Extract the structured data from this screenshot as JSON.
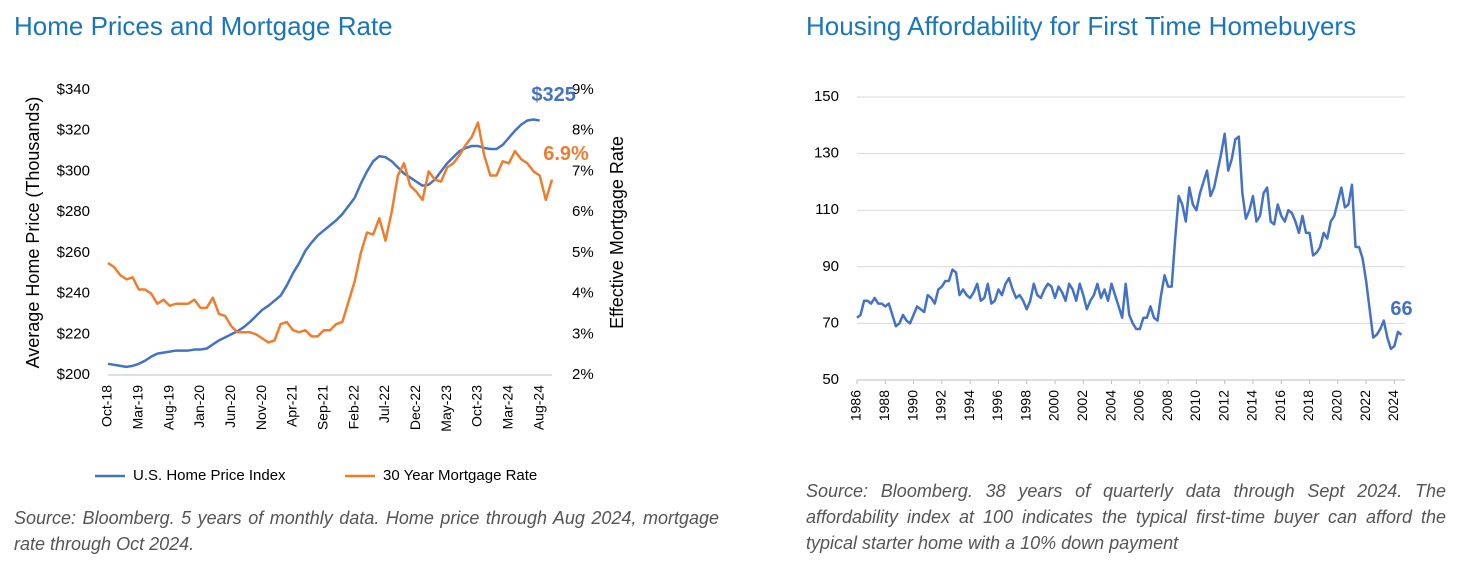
{
  "chart_data": [
    {
      "type": "line",
      "title": "Home Prices and Mortgage Rate",
      "y_label": "Average Home Price (Thousands)",
      "y2_label": "Effective Mortgage Rate",
      "categories": [
        "Oct-18",
        null,
        null,
        null,
        null,
        "Mar-19",
        null,
        null,
        null,
        null,
        "Aug-19",
        null,
        null,
        null,
        null,
        "Jan-20",
        null,
        null,
        null,
        null,
        "Jun-20",
        null,
        null,
        null,
        null,
        "Nov-20",
        null,
        null,
        null,
        null,
        "Apr-21",
        null,
        null,
        null,
        null,
        "Sep-21",
        null,
        null,
        null,
        null,
        "Feb-22",
        null,
        null,
        null,
        null,
        "Jul-22",
        null,
        null,
        null,
        null,
        "Dec-22",
        null,
        null,
        null,
        null,
        "May-23",
        null,
        null,
        null,
        null,
        "Oct-23",
        null,
        null,
        null,
        null,
        "Mar-24",
        null,
        null,
        null,
        null,
        "Aug-24",
        null,
        null
      ],
      "series": [
        {
          "name": "U.S. Home Price Index",
          "color": "#4472c4",
          "values": [
            205.5,
            205,
            204.5,
            204,
            204.5,
            205.5,
            207,
            209,
            210.5,
            211,
            211.5,
            212,
            212,
            212,
            212.5,
            212.5,
            213,
            215,
            217,
            218.5,
            220,
            221.5,
            223.5,
            226,
            229,
            232,
            234,
            236.5,
            239,
            244,
            250,
            255,
            261,
            265,
            268.5,
            271,
            273.5,
            276,
            279,
            283,
            287,
            294,
            300,
            305,
            307.5,
            307,
            305,
            302,
            299,
            297,
            295,
            293,
            293.5,
            296,
            300,
            304,
            307,
            310,
            311.5,
            312.5,
            312.5,
            311.5,
            311,
            311,
            313,
            316.5,
            320,
            323,
            325,
            325.5,
            325,
            null,
            null
          ]
        },
        {
          "name": "30 Year Mortgage Rate",
          "color": "#ed7d31",
          "axis": "y2",
          "values": [
            4.75,
            4.65,
            4.45,
            4.35,
            4.4,
            4.1,
            4.1,
            4.0,
            3.75,
            3.85,
            3.7,
            3.75,
            3.75,
            3.75,
            3.85,
            3.65,
            3.65,
            3.9,
            3.5,
            3.45,
            3.2,
            3.05,
            3.05,
            3.05,
            3.0,
            2.9,
            2.8,
            2.85,
            3.25,
            3.3,
            3.1,
            3.05,
            3.1,
            2.95,
            2.95,
            3.1,
            3.1,
            3.25,
            3.3,
            3.8,
            4.3,
            5.0,
            5.5,
            5.45,
            5.85,
            5.3,
            6.0,
            6.9,
            7.2,
            6.65,
            6.5,
            6.3,
            7.0,
            6.8,
            6.75,
            7.1,
            7.2,
            7.4,
            7.65,
            7.85,
            8.2,
            7.4,
            6.9,
            6.9,
            7.25,
            7.2,
            7.5,
            7.3,
            7.2,
            7.0,
            6.9,
            6.3,
            6.8
          ]
        }
      ],
      "ylim": [
        200,
        340
      ],
      "yticks": [
        {
          "value": 200,
          "label": "$200"
        },
        {
          "value": 220,
          "label": "$220"
        },
        {
          "value": 240,
          "label": "$240"
        },
        {
          "value": 260,
          "label": "$260"
        },
        {
          "value": 280,
          "label": "$280"
        },
        {
          "value": 300,
          "label": "$300"
        },
        {
          "value": 320,
          "label": "$320"
        },
        {
          "value": 340,
          "label": "$340"
        }
      ],
      "y2lim": [
        2,
        9
      ],
      "y2ticks": [
        {
          "value": 2,
          "label": "2%"
        },
        {
          "value": 3,
          "label": "3%"
        },
        {
          "value": 4,
          "label": "4%"
        },
        {
          "value": 5,
          "label": "5%"
        },
        {
          "value": 6,
          "label": "6%"
        },
        {
          "value": 7,
          "label": "7%"
        },
        {
          "value": 8,
          "label": "8%"
        },
        {
          "value": 9,
          "label": "9%"
        }
      ],
      "annotations": [
        "$325",
        "6.9%"
      ],
      "grid": false,
      "legend": "bottom",
      "source": "Source: Bloomberg. 5 years of monthly data. Home price through Aug 2024, mortgage rate through Oct 2024."
    },
    {
      "type": "line",
      "title": "Housing Affordability for First Time Homebuyers",
      "x": [
        1986,
        1986.25,
        1986.5,
        1986.75,
        1987,
        1987.25,
        1987.5,
        1987.75,
        1988,
        1988.25,
        1988.5,
        1988.75,
        1989,
        1989.25,
        1989.5,
        1989.75,
        1990,
        1990.25,
        1990.5,
        1990.75,
        1991,
        1991.25,
        1991.5,
        1991.75,
        1992,
        1992.25,
        1992.5,
        1992.75,
        1993,
        1993.25,
        1993.5,
        1993.75,
        1994,
        1994.25,
        1994.5,
        1994.75,
        1995,
        1995.25,
        1995.5,
        1995.75,
        1996,
        1996.25,
        1996.5,
        1996.75,
        1997,
        1997.25,
        1997.5,
        1997.75,
        1998,
        1998.25,
        1998.5,
        1998.75,
        1999,
        1999.25,
        1999.5,
        1999.75,
        2000,
        2000.25,
        2000.5,
        2000.75,
        2001,
        2001.25,
        2001.5,
        2001.75,
        2002,
        2002.25,
        2002.5,
        2002.75,
        2003,
        2003.25,
        2003.5,
        2003.75,
        2004,
        2004.25,
        2004.5,
        2004.75,
        2005,
        2005.25,
        2005.5,
        2005.75,
        2006,
        2006.25,
        2006.5,
        2006.75,
        2007,
        2007.25,
        2007.5,
        2007.75,
        2008,
        2008.25,
        2008.5,
        2008.75,
        2009,
        2009.25,
        2009.5,
        2009.75,
        2010,
        2010.25,
        2010.5,
        2010.75,
        2011,
        2011.25,
        2011.5,
        2011.75,
        2012,
        2012.25,
        2012.5,
        2012.75,
        2013,
        2013.25,
        2013.5,
        2013.75,
        2014,
        2014.25,
        2014.5,
        2014.75,
        2015,
        2015.25,
        2015.5,
        2015.75,
        2016,
        2016.25,
        2016.5,
        2016.75,
        2017,
        2017.25,
        2017.5,
        2017.75,
        2018,
        2018.25,
        2018.5,
        2018.75,
        2019,
        2019.25,
        2019.5,
        2019.75,
        2020,
        2020.25,
        2020.5,
        2020.75,
        2021,
        2021.25,
        2021.5,
        2021.75,
        2022,
        2022.25,
        2022.5,
        2022.75,
        2023,
        2023.25,
        2023.5,
        2023.75,
        2024,
        2024.25,
        2024.5
      ],
      "values": [
        72,
        73,
        78,
        78,
        77,
        79,
        77,
        77,
        76,
        77,
        73,
        69,
        70,
        73,
        71,
        70,
        73,
        76,
        75,
        74,
        80,
        79,
        77,
        82,
        83,
        85,
        85,
        89,
        88,
        80,
        82,
        80,
        79,
        81,
        84,
        78,
        79,
        84,
        77,
        78,
        82,
        80,
        84,
        86,
        82,
        79,
        80,
        78,
        75,
        78,
        84,
        80,
        79,
        82,
        84,
        83,
        79,
        83,
        81,
        78,
        84,
        82,
        78,
        84,
        80,
        75,
        78,
        80,
        84,
        79,
        82,
        78,
        84,
        80,
        76,
        72,
        84,
        73,
        70,
        68,
        68,
        72,
        72,
        76,
        72,
        71,
        80,
        87,
        83,
        83,
        100,
        115,
        112,
        106,
        118,
        112,
        110,
        116,
        120,
        124,
        115,
        118,
        124,
        130,
        137,
        124,
        128,
        135,
        136,
        116,
        107,
        110,
        115,
        106,
        108,
        116,
        118,
        106,
        105,
        112,
        108,
        106,
        110,
        109,
        106,
        102,
        108,
        102,
        102,
        94,
        95,
        97,
        102,
        100,
        106,
        108,
        113,
        118,
        111,
        112,
        119,
        97,
        97,
        93,
        85,
        75,
        65,
        66,
        68,
        71,
        65,
        61,
        62,
        67,
        66
      ],
      "color": "#4472c4",
      "xlim": [
        1986,
        2024.75
      ],
      "xticks": [
        1986,
        1988,
        1990,
        1992,
        1994,
        1996,
        1998,
        2000,
        2002,
        2004,
        2006,
        2008,
        2010,
        2012,
        2014,
        2016,
        2018,
        2020,
        2022,
        2024
      ],
      "ylim": [
        50,
        150
      ],
      "yticks": [
        50,
        70,
        90,
        110,
        130,
        150
      ],
      "annotations": [
        "66"
      ],
      "grid": true,
      "source": "Source: Bloomberg. 38 years of quarterly data through Sept 2024. The affordability index at 100 indicates the typical first-time buyer can afford the typical starter home with a 10% down payment"
    }
  ]
}
